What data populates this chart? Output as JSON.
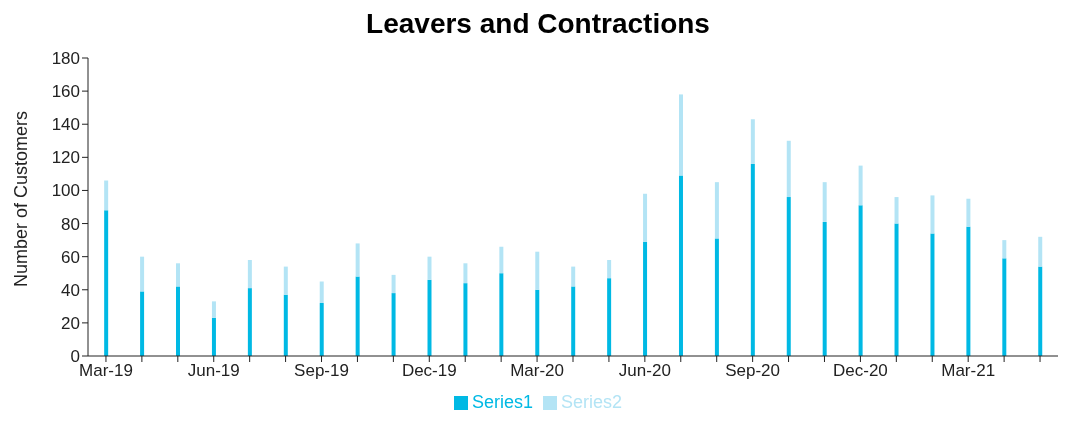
{
  "chart_data": {
    "type": "bar",
    "title": "Leavers and Contractions",
    "ylabel": "Number of Customers",
    "categories": [
      "Mar-19",
      null,
      null,
      "Jun-19",
      null,
      null,
      "Sep-19",
      null,
      null,
      "Dec-19",
      null,
      null,
      "Mar-20",
      null,
      null,
      "Jun-20",
      null,
      null,
      "Sep-20",
      null,
      null,
      "Dec-20",
      null,
      null,
      "Mar-21",
      null,
      null
    ],
    "series": [
      {
        "name": "Series1",
        "color": "#00b9e4",
        "values": [
          88,
          39,
          42,
          23,
          41,
          37,
          32,
          48,
          38,
          46,
          44,
          50,
          40,
          42,
          47,
          69,
          109,
          71,
          116,
          96,
          81,
          91,
          80,
          74,
          78,
          59,
          54
        ]
      },
      {
        "name": "Series2",
        "color": "#b3e4f5",
        "values": [
          18,
          21,
          14,
          10,
          17,
          17,
          13,
          20,
          11,
          14,
          12,
          16,
          23,
          12,
          11,
          29,
          49,
          34,
          27,
          34,
          24,
          24,
          16,
          23,
          17,
          11,
          18
        ]
      }
    ],
    "stacked": true,
    "ylim": [
      0,
      180
    ],
    "yticks": [
      0,
      20,
      40,
      60,
      80,
      100,
      120,
      140,
      160,
      180
    ],
    "grid": false,
    "legend": "bottom"
  }
}
